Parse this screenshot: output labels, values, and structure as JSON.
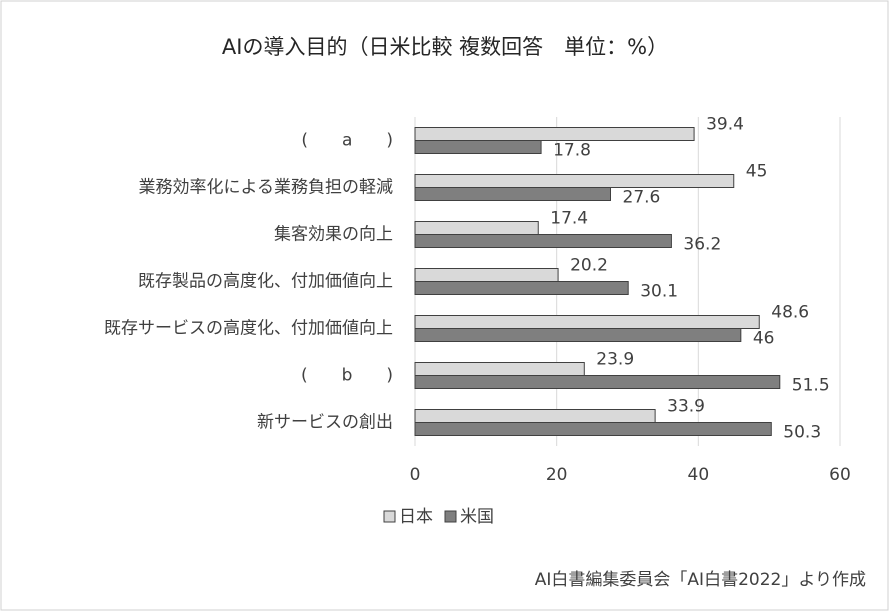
{
  "chart_data": {
    "type": "bar",
    "orientation": "horizontal",
    "title": "AIの導入目的（日米比較 複数回答　単位：%）",
    "categories": [
      "(　　a　　)",
      "業務効率化による業務負担の軽減",
      "集客効果の向上",
      "既存製品の高度化、付加価値向上",
      "既存サービスの高度化、付加価値向上",
      "(　　b　　)",
      "新サービスの創出"
    ],
    "series": [
      {
        "name": "日本",
        "color": "#d9d9d9",
        "values": [
          39.4,
          45,
          17.4,
          20.2,
          48.6,
          23.9,
          33.9
        ]
      },
      {
        "name": "米国",
        "color": "#7f7f7f",
        "values": [
          17.8,
          27.6,
          36.2,
          30.1,
          46,
          51.5,
          50.3
        ]
      }
    ],
    "xlim": [
      0,
      60
    ],
    "xticks": [
      0,
      20,
      40,
      60
    ],
    "grid": true,
    "legend": "bottom",
    "note": "AI白書編集委員会「AI白書2022」より作成"
  }
}
